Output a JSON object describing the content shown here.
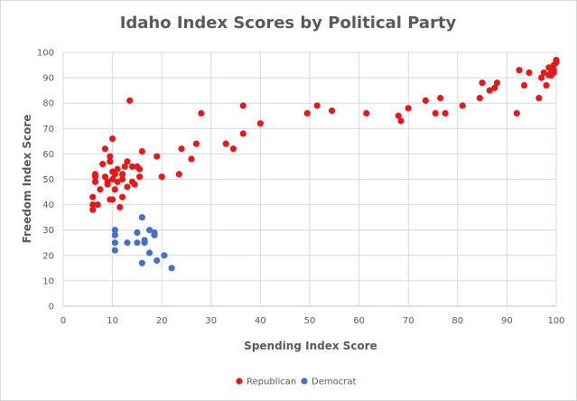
{
  "chart_data": {
    "type": "scatter",
    "title": "Idaho Index Scores by Political Party",
    "xlabel": "Spending Index Score",
    "ylabel": "Freedom Index Score",
    "xlim": [
      0,
      100
    ],
    "ylim": [
      0,
      100
    ],
    "xticks": [
      0,
      10,
      20,
      30,
      40,
      50,
      60,
      70,
      80,
      90,
      100
    ],
    "yticks": [
      0,
      10,
      20,
      30,
      40,
      50,
      60,
      70,
      80,
      90,
      100
    ],
    "grid": true,
    "legend": "bottom",
    "series": [
      {
        "name": "Republican",
        "color": "#e31a1c",
        "points": [
          [
            6,
            38
          ],
          [
            6,
            40
          ],
          [
            6,
            43
          ],
          [
            6.5,
            49
          ],
          [
            6.5,
            51
          ],
          [
            6.5,
            52
          ],
          [
            7,
            40
          ],
          [
            7.5,
            46
          ],
          [
            8,
            56
          ],
          [
            8.5,
            51
          ],
          [
            8.5,
            62
          ],
          [
            9,
            48
          ],
          [
            9,
            49
          ],
          [
            9.5,
            57
          ],
          [
            9.5,
            59
          ],
          [
            9.5,
            42
          ],
          [
            10,
            42
          ],
          [
            10,
            50
          ],
          [
            10,
            53
          ],
          [
            10,
            66
          ],
          [
            10.5,
            46
          ],
          [
            10.5,
            52
          ],
          [
            11,
            49
          ],
          [
            11,
            54
          ],
          [
            11.5,
            39
          ],
          [
            12,
            43
          ],
          [
            12,
            50
          ],
          [
            12,
            52
          ],
          [
            12.5,
            55
          ],
          [
            13,
            47
          ],
          [
            13,
            57
          ],
          [
            13.5,
            81
          ],
          [
            14,
            49
          ],
          [
            14,
            55
          ],
          [
            14.5,
            48
          ],
          [
            15,
            55
          ],
          [
            15.5,
            51
          ],
          [
            15.5,
            54
          ],
          [
            16,
            61
          ],
          [
            19,
            59
          ],
          [
            20,
            51
          ],
          [
            23.5,
            52
          ],
          [
            24,
            62
          ],
          [
            26,
            58
          ],
          [
            27,
            64
          ],
          [
            28,
            76
          ],
          [
            33,
            64
          ],
          [
            34.5,
            62
          ],
          [
            36.5,
            68
          ],
          [
            36.5,
            79
          ],
          [
            40,
            72
          ],
          [
            49.5,
            76
          ],
          [
            51.5,
            79
          ],
          [
            54.5,
            77
          ],
          [
            61.5,
            76
          ],
          [
            68,
            75
          ],
          [
            68.5,
            73
          ],
          [
            70,
            78
          ],
          [
            73.5,
            81
          ],
          [
            75.5,
            76
          ],
          [
            76.5,
            82
          ],
          [
            77.5,
            76
          ],
          [
            81,
            79
          ],
          [
            84.5,
            82
          ],
          [
            85,
            88
          ],
          [
            86.5,
            85
          ],
          [
            87.5,
            86
          ],
          [
            88,
            88
          ],
          [
            92,
            76
          ],
          [
            92.5,
            93
          ],
          [
            93.5,
            87
          ],
          [
            94.5,
            92
          ],
          [
            96.5,
            82
          ],
          [
            97,
            90
          ],
          [
            97.5,
            92
          ],
          [
            98,
            87
          ],
          [
            98.5,
            91
          ],
          [
            98.5,
            94
          ],
          [
            99,
            91
          ],
          [
            99.5,
            93
          ],
          [
            99.5,
            95
          ],
          [
            100,
            96
          ],
          [
            100,
            97
          ],
          [
            99.5,
            92
          ],
          [
            99,
            92.5
          ]
        ]
      },
      {
        "name": "Democrat",
        "color": "#4472c4",
        "points": [
          [
            10.5,
            30
          ],
          [
            10.5,
            28
          ],
          [
            10.5,
            25
          ],
          [
            10.5,
            22
          ],
          [
            13,
            25
          ],
          [
            15,
            29
          ],
          [
            15,
            25
          ],
          [
            16,
            35
          ],
          [
            16,
            17
          ],
          [
            16.5,
            26
          ],
          [
            16.5,
            25
          ],
          [
            17.5,
            30
          ],
          [
            17.5,
            21
          ],
          [
            18.5,
            29
          ],
          [
            18.5,
            28
          ],
          [
            19,
            18
          ],
          [
            20.5,
            20
          ],
          [
            22,
            15
          ]
        ]
      }
    ]
  }
}
